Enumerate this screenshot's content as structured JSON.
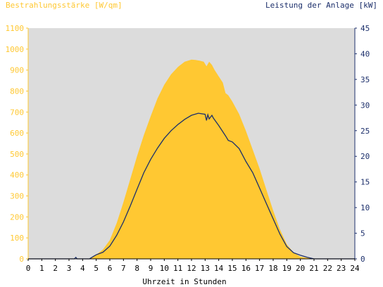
{
  "chart_data": {
    "type": "area",
    "left_axis_title": "Bestrahlungsstärke [W/qm]",
    "right_axis_title": "Leistung der Anlage [kW]",
    "xlabel": "Uhrzeit in Stunden",
    "x_range": [
      0,
      24
    ],
    "x_ticks": [
      "0",
      "1",
      "2",
      "3",
      "4",
      "5",
      "6",
      "7",
      "8",
      "9",
      "10",
      "11",
      "12",
      "13",
      "14",
      "15",
      "16",
      "17",
      "18",
      "19",
      "20",
      "21",
      "22",
      "23",
      "24"
    ],
    "left_range": [
      0,
      1100
    ],
    "left_ticks": [
      "0",
      "100",
      "200",
      "300",
      "400",
      "500",
      "600",
      "700",
      "800",
      "900",
      "1000",
      "1100"
    ],
    "right_range": [
      0,
      45
    ],
    "right_ticks": [
      "0",
      "5",
      "10",
      "15",
      "20",
      "25",
      "30",
      "35",
      "40",
      "45"
    ],
    "grid": false,
    "colors": {
      "plot_background": "#dcdcdc",
      "irradiance_fill": "#ffc832",
      "power_line": "#1c2f6b",
      "left_axis": "#ffc832",
      "right_axis": "#1c2f6b"
    },
    "series": [
      {
        "axis": "left",
        "style": "area",
        "x": [
          0,
          4.5,
          5,
          5.5,
          6,
          6.5,
          7,
          7.5,
          8,
          8.5,
          9,
          9.5,
          10,
          10.5,
          11,
          11.5,
          12,
          12.3,
          12.6,
          12.9,
          13.1,
          13.3,
          13.5,
          13.7,
          14,
          14.3,
          14.5,
          14.7,
          15,
          15.5,
          16,
          16.5,
          17,
          17.5,
          18,
          18.5,
          19,
          19.5,
          20,
          20.5,
          21,
          24
        ],
        "values": [
          0,
          0,
          20,
          45,
          90,
          170,
          270,
          380,
          490,
          590,
          680,
          765,
          830,
          880,
          915,
          940,
          950,
          948,
          945,
          940,
          918,
          940,
          925,
          900,
          870,
          840,
          790,
          780,
          750,
          690,
          610,
          520,
          430,
          330,
          230,
          140,
          70,
          30,
          10,
          5,
          0,
          0
        ]
      },
      {
        "axis": "right",
        "style": "line",
        "x": [
          0,
          3.4,
          3.5,
          3.6,
          4.5,
          4.8,
          5,
          5.5,
          6,
          6.5,
          7,
          7.5,
          8,
          8.5,
          9,
          9.5,
          10,
          10.5,
          11,
          11.5,
          12,
          12.5,
          13,
          13.1,
          13.2,
          13.3,
          13.5,
          13.6,
          14,
          14.5,
          14.7,
          15,
          15.5,
          16,
          16.5,
          17,
          17.5,
          18,
          18.5,
          19,
          19.5,
          20,
          20.5,
          21,
          24
        ],
        "values": [
          0,
          0,
          0.3,
          0,
          0,
          0.5,
          0.8,
          1.3,
          2.5,
          4.6,
          7.2,
          10.3,
          13.6,
          16.8,
          19.4,
          21.6,
          23.5,
          25,
          26.2,
          27.2,
          28,
          28.4,
          28.2,
          27,
          28.1,
          27.3,
          28,
          27.5,
          26,
          24,
          23.1,
          22.8,
          21.5,
          19,
          16.8,
          13.8,
          10.8,
          7.8,
          4.8,
          2.4,
          1.2,
          0.7,
          0.3,
          0,
          0
        ]
      }
    ]
  }
}
